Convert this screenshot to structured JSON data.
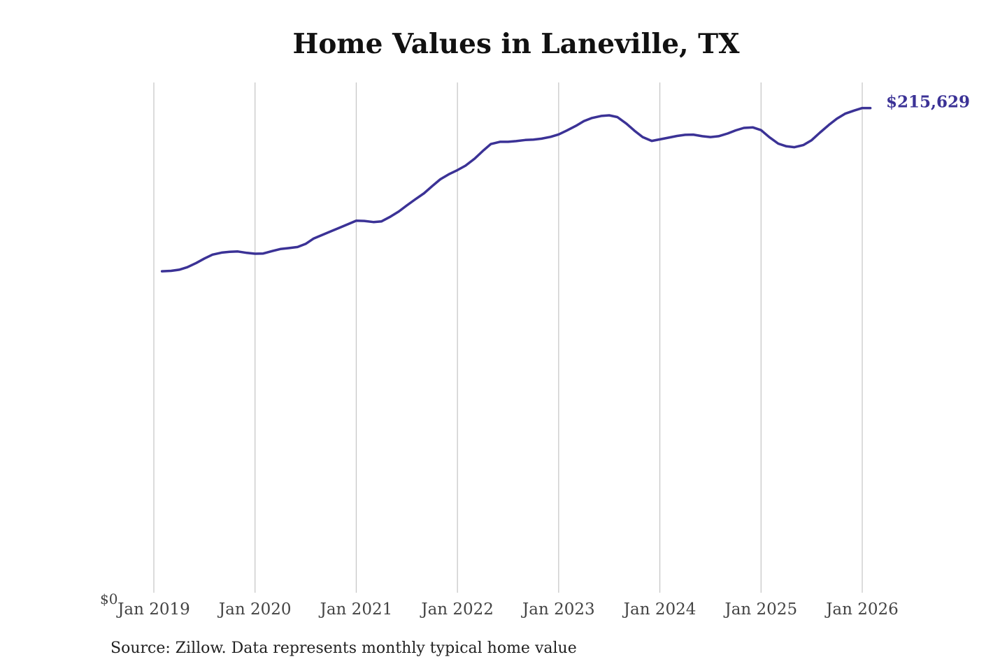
{
  "chart_data": {
    "type": "line",
    "title": "Home Values in Laneville, TX",
    "source": "Source: Zillow. Data represents monthly typical home value",
    "y_axis_label": "$0",
    "ylim": [
      0,
      227000
    ],
    "x_range": [
      2019.0,
      2026.1
    ],
    "x_ticks": [
      {
        "value": 2019,
        "label": "Jan 2019"
      },
      {
        "value": 2020,
        "label": "Jan 2020"
      },
      {
        "value": 2021,
        "label": "Jan 2021"
      },
      {
        "value": 2022,
        "label": "Jan 2022"
      },
      {
        "value": 2023,
        "label": "Jan 2023"
      },
      {
        "value": 2024,
        "label": "Jan 2024"
      },
      {
        "value": 2025,
        "label": "Jan 2025"
      },
      {
        "value": 2026,
        "label": "Jan 2026"
      }
    ],
    "end_label": "$215,629",
    "grid": "vertical",
    "series": [
      {
        "name": "Typical home value",
        "color": "#3b3296",
        "x": [
          2019.08,
          2019.17,
          2019.25,
          2019.33,
          2019.42,
          2019.5,
          2019.58,
          2019.67,
          2019.75,
          2019.83,
          2019.92,
          2020.0,
          2020.08,
          2020.17,
          2020.25,
          2020.33,
          2020.42,
          2020.5,
          2020.58,
          2020.67,
          2020.75,
          2020.83,
          2020.92,
          2021.0,
          2021.08,
          2021.17,
          2021.25,
          2021.33,
          2021.42,
          2021.5,
          2021.58,
          2021.67,
          2021.75,
          2021.83,
          2021.92,
          2022.0,
          2022.08,
          2022.17,
          2022.25,
          2022.33,
          2022.42,
          2022.5,
          2022.58,
          2022.67,
          2022.75,
          2022.83,
          2022.92,
          2023.0,
          2023.08,
          2023.17,
          2023.25,
          2023.33,
          2023.42,
          2023.5,
          2023.58,
          2023.67,
          2023.75,
          2023.83,
          2023.92,
          2024.0,
          2024.08,
          2024.17,
          2024.25,
          2024.33,
          2024.42,
          2024.5,
          2024.58,
          2024.67,
          2024.75,
          2024.83,
          2024.92,
          2025.0,
          2025.08,
          2025.17,
          2025.25,
          2025.33,
          2025.42,
          2025.5,
          2025.58,
          2025.67,
          2025.75,
          2025.83,
          2025.92,
          2026.0,
          2026.08
        ],
        "values": [
          143000,
          143200,
          143700,
          144800,
          146700,
          148700,
          150400,
          151300,
          151700,
          151800,
          151200,
          150800,
          150900,
          152000,
          152900,
          153300,
          153800,
          155200,
          157600,
          159300,
          160800,
          162300,
          164000,
          165500,
          165400,
          164900,
          165200,
          167100,
          169600,
          172300,
          174900,
          177700,
          180900,
          183900,
          186300,
          188000,
          190000,
          193100,
          196500,
          199600,
          200600,
          200600,
          200900,
          201400,
          201600,
          202000,
          202800,
          203900,
          205600,
          207700,
          209800,
          211200,
          212100,
          212400,
          211600,
          208700,
          205500,
          202700,
          201000,
          201700,
          202400,
          203200,
          203700,
          203800,
          203100,
          202700,
          203100,
          204300,
          205700,
          206800,
          207000,
          205800,
          202700,
          199800,
          198600,
          198200,
          199200,
          201300,
          204600,
          208100,
          210900,
          213100,
          214500,
          215629,
          215629
        ]
      }
    ]
  }
}
